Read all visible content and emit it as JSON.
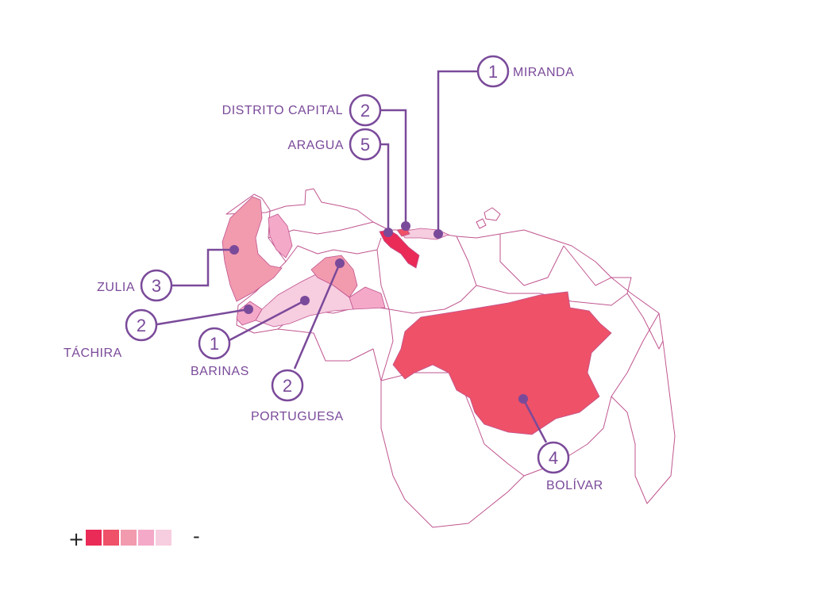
{
  "colors": {
    "line": "#7a4a9a",
    "border": "#c0558f",
    "scale": [
      "#ea2a57",
      "#ee5168",
      "#f29aae",
      "#f4a9c8",
      "#f7cde0"
    ]
  },
  "states": [
    {
      "name": "MIRANDA",
      "count": "1"
    },
    {
      "name": "DISTRITO CAPITAL",
      "count": "2"
    },
    {
      "name": "ARAGUA",
      "count": "5"
    },
    {
      "name": "ZULIA",
      "count": "3"
    },
    {
      "name": "TÁCHIRA",
      "count": "2"
    },
    {
      "name": "BARINAS",
      "count": "1"
    },
    {
      "name": "PORTUGUESA",
      "count": "2"
    },
    {
      "name": "BOLÍVAR",
      "count": "4"
    }
  ],
  "legend": {
    "plus": "+",
    "minus": "-"
  }
}
